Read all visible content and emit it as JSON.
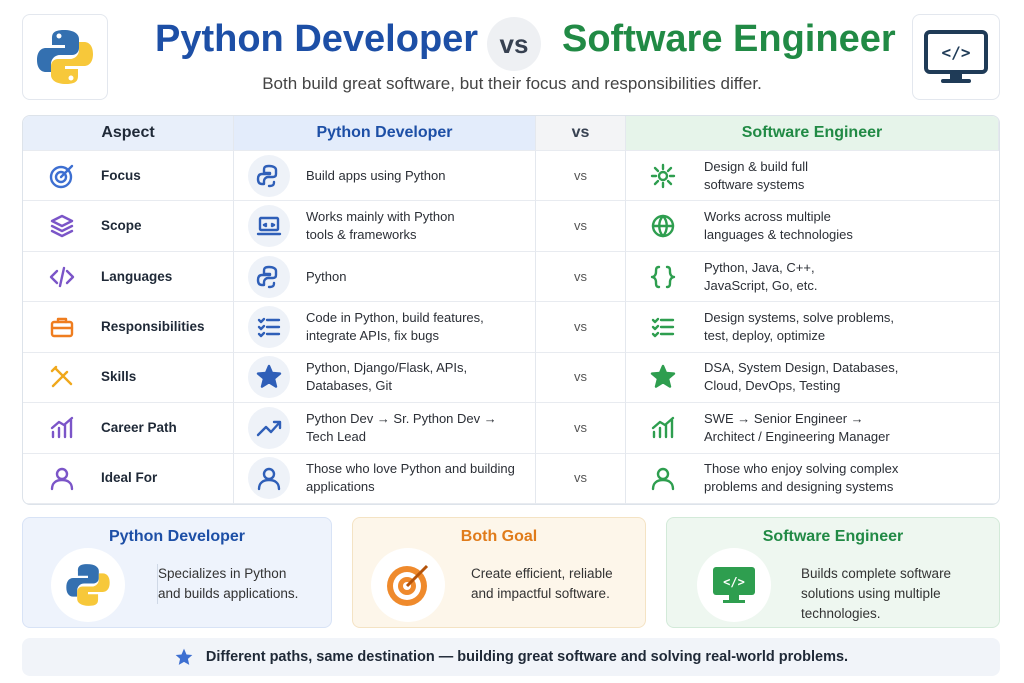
{
  "header": {
    "title_left": "Python Developer",
    "vs": "vs",
    "title_right": "Software Engineer",
    "subtitle": "Both build great software, but their focus and responsibilities differ."
  },
  "table": {
    "columns": [
      "Aspect",
      "Python Developer",
      "vs",
      "Software Engineer"
    ],
    "rows": [
      [
        "Focus",
        "Build apps using Python",
        "vs",
        "Design & build full\nsoftware systems"
      ],
      [
        "Scope",
        "Works mainly with Python\ntools & frameworks",
        "vs",
        "Works across multiple\nlanguages & technologies"
      ],
      [
        "Languages",
        "Python",
        "vs",
        "Python, Java, C++,\nJavaScript, Go, etc."
      ],
      [
        "Responsibilities",
        "Code in Python, build features,\nintegrate APIs, fix bugs",
        "vs",
        "Design systems, solve problems,\ntest, deploy, optimize"
      ],
      [
        "Skills",
        "Python, Django/Flask, APIs,\nDatabases, Git",
        "vs",
        "DSA, System Design, Databases,\nCloud, DevOps, Testing"
      ],
      [
        "Career Path",
        "Python Dev → Sr. Python Dev →\nTech Lead",
        "vs",
        "SWE → Senior Engineer →\nArchitect / Engineering Manager"
      ],
      [
        "Ideal For",
        "Those who love Python and building\napplications",
        "vs",
        "Those who enjoy solving complex\nproblems and designing systems"
      ]
    ]
  },
  "cards": [
    {
      "title": "Python Developer",
      "text": "Specializes in Python\nand builds applications."
    },
    {
      "title": "Both Goal",
      "text": "Create efficient, reliable\nand impactful software."
    },
    {
      "title": "Software Engineer",
      "text": "Builds complete software\nsolutions using multiple\ntechnologies."
    }
  ],
  "footer": "Different paths, same destination — building great software and solving real-world problems."
}
